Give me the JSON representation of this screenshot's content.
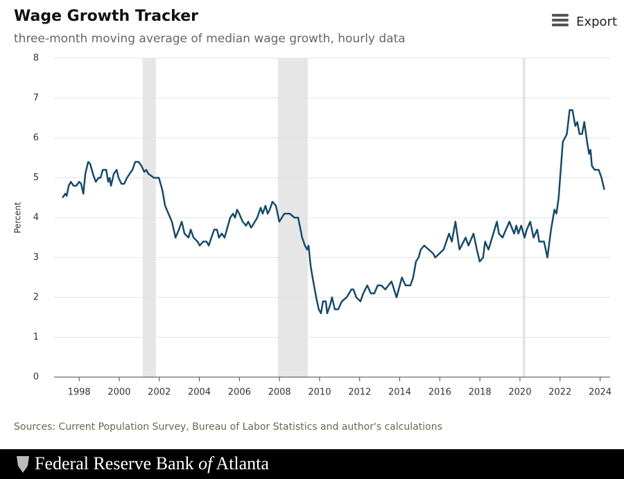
{
  "chart_data": {
    "type": "line",
    "title": "Wage Growth Tracker",
    "subtitle": "three-month moving average of median wage growth, hourly data",
    "y_label": "Percent",
    "source": "Sources: Current Population Survey, Bureau of Labor Statistics and author's calculations",
    "color": "#174a6a",
    "shade_color": "#e6e6e6",
    "grid": true,
    "xlim": [
      1996.75,
      2024.5
    ],
    "xticks": [
      1998,
      2000,
      2002,
      2004,
      2006,
      2008,
      2010,
      2012,
      2014,
      2016,
      2018,
      2020,
      2022,
      2024
    ],
    "ylim": [
      0,
      8
    ],
    "yticks": [
      0,
      1,
      2,
      3,
      4,
      5,
      6,
      7,
      8
    ],
    "shaded_periods": [
      [
        2001.17,
        2001.83
      ],
      [
        2007.92,
        2009.41
      ],
      [
        2020.13,
        2020.27
      ]
    ],
    "x": [
      1997.17,
      1997.31,
      1997.38,
      1997.48,
      1997.59,
      1997.72,
      1997.86,
      1998.0,
      1998.1,
      1998.21,
      1998.31,
      1998.45,
      1998.55,
      1998.69,
      1998.83,
      1998.97,
      1999.07,
      1999.18,
      1999.35,
      1999.45,
      1999.52,
      1999.59,
      1999.73,
      1999.87,
      1999.97,
      2000.11,
      2000.25,
      2000.39,
      2000.52,
      2000.66,
      2000.8,
      2000.97,
      2001.11,
      2001.25,
      2001.35,
      2001.46,
      2001.73,
      2001.98,
      2002.15,
      2002.29,
      2002.46,
      2002.63,
      2002.81,
      2002.98,
      2003.12,
      2003.26,
      2003.46,
      2003.57,
      2003.71,
      2003.91,
      2004.02,
      2004.19,
      2004.36,
      2004.47,
      2004.6,
      2004.74,
      2004.88,
      2004.98,
      2005.12,
      2005.26,
      2005.37,
      2005.54,
      2005.68,
      2005.78,
      2005.88,
      2005.99,
      2006.16,
      2006.33,
      2006.44,
      2006.58,
      2006.71,
      2006.89,
      2007.06,
      2007.16,
      2007.3,
      2007.41,
      2007.51,
      2007.65,
      2007.82,
      2007.99,
      2008.24,
      2008.51,
      2008.75,
      2008.93,
      2009.13,
      2009.27,
      2009.38,
      2009.45,
      2009.55,
      2009.65,
      2009.83,
      2009.96,
      2010.07,
      2010.17,
      2010.31,
      2010.38,
      2010.52,
      2010.62,
      2010.76,
      2010.93,
      2011.11,
      2011.35,
      2011.59,
      2011.69,
      2011.83,
      2012.04,
      2012.18,
      2012.38,
      2012.56,
      2012.73,
      2012.9,
      2013.08,
      2013.28,
      2013.59,
      2013.84,
      2014.11,
      2014.29,
      2014.53,
      2014.67,
      2014.81,
      2014.94,
      2015.05,
      2015.22,
      2015.67,
      2015.77,
      2016.19,
      2016.46,
      2016.6,
      2016.78,
      2016.98,
      2017.29,
      2017.43,
      2017.68,
      2017.85,
      2017.99,
      2018.16,
      2018.26,
      2018.43,
      2018.61,
      2018.85,
      2018.95,
      2019.13,
      2019.47,
      2019.71,
      2019.82,
      2019.92,
      2020.06,
      2020.23,
      2020.34,
      2020.51,
      2020.68,
      2020.86,
      2020.96,
      2021.2,
      2021.37,
      2021.55,
      2021.72,
      2021.82,
      2021.93,
      2022.14,
      2022.24,
      2022.34,
      2022.48,
      2022.62,
      2022.76,
      2022.86,
      2022.97,
      2023.1,
      2023.21,
      2023.35,
      2023.45,
      2023.52,
      2023.59,
      2023.73,
      2023.93,
      2024.07,
      2024.21
    ],
    "values": [
      4.5,
      4.6,
      4.55,
      4.8,
      4.9,
      4.8,
      4.8,
      4.9,
      4.85,
      4.6,
      5.1,
      5.4,
      5.35,
      5.1,
      4.9,
      5.0,
      5.0,
      5.2,
      5.2,
      4.9,
      5.0,
      4.8,
      5.1,
      5.2,
      5.0,
      4.85,
      4.85,
      5.0,
      5.1,
      5.2,
      5.4,
      5.4,
      5.3,
      5.15,
      5.2,
      5.1,
      5.0,
      5.0,
      4.7,
      4.3,
      4.1,
      3.9,
      3.5,
      3.7,
      3.9,
      3.6,
      3.5,
      3.7,
      3.5,
      3.4,
      3.3,
      3.4,
      3.4,
      3.3,
      3.5,
      3.7,
      3.7,
      3.5,
      3.6,
      3.5,
      3.7,
      4.0,
      4.1,
      4.0,
      4.2,
      4.1,
      3.9,
      3.8,
      3.9,
      3.75,
      3.85,
      4.0,
      4.25,
      4.1,
      4.3,
      4.1,
      4.2,
      4.4,
      4.3,
      3.9,
      4.1,
      4.1,
      4.0,
      4.0,
      3.5,
      3.3,
      3.2,
      3.3,
      2.8,
      2.5,
      2.0,
      1.7,
      1.6,
      1.9,
      1.9,
      1.6,
      1.8,
      2.0,
      1.7,
      1.7,
      1.9,
      2.0,
      2.2,
      2.2,
      2.0,
      1.9,
      2.1,
      2.3,
      2.1,
      2.1,
      2.3,
      2.3,
      2.2,
      2.4,
      2.0,
      2.5,
      2.3,
      2.3,
      2.5,
      2.9,
      3.0,
      3.2,
      3.3,
      3.1,
      3.0,
      3.2,
      3.6,
      3.4,
      3.9,
      3.2,
      3.5,
      3.3,
      3.6,
      3.2,
      2.9,
      3.0,
      3.4,
      3.2,
      3.5,
      3.9,
      3.6,
      3.5,
      3.9,
      3.6,
      3.8,
      3.6,
      3.8,
      3.5,
      3.7,
      3.9,
      3.5,
      3.7,
      3.4,
      3.4,
      3.0,
      3.7,
      4.2,
      4.1,
      4.5,
      5.9,
      6.0,
      6.1,
      6.7,
      6.7,
      6.3,
      6.4,
      6.1,
      6.1,
      6.4,
      5.9,
      5.6,
      5.7,
      5.3,
      5.2,
      5.2,
      5.0,
      4.7
    ]
  },
  "export": "Export",
  "footer": {
    "name_start": "Federal Reserve Bank",
    "name_of": "of",
    "name_end": "Atlanta"
  }
}
